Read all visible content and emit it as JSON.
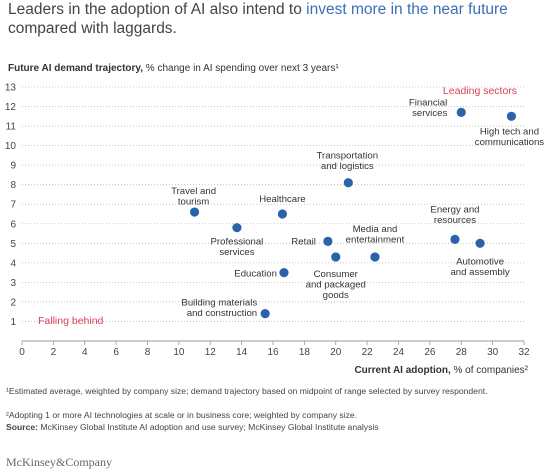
{
  "headline": {
    "part1": "Leaders in the adoption of AI also intend to ",
    "highlight": "invest more in the near future",
    "part2": " compared with laggards."
  },
  "colors": {
    "point": "#2b63a8",
    "accent_red": "#d9425a",
    "highlight_blue": "#3a6fb7",
    "grid": "#bbbbbb"
  },
  "chart_data": {
    "type": "scatter",
    "ylabel_bold": "Future AI demand trajectory,",
    "ylabel_rest": " % change in AI spending over next 3 years¹",
    "xlabel_bold": "Current AI adoption,",
    "xlabel_rest": " % of companies²",
    "xlim": [
      0,
      32
    ],
    "ylim": [
      0,
      13
    ],
    "xticks": [
      0,
      2,
      4,
      6,
      8,
      10,
      12,
      14,
      16,
      18,
      20,
      22,
      24,
      26,
      28,
      30,
      32
    ],
    "yticks": [
      1,
      2,
      3,
      4,
      5,
      6,
      7,
      8,
      9,
      10,
      11,
      12,
      13
    ],
    "grid": "horizontal dotted",
    "annotations": [
      {
        "text": "Leading sectors",
        "position": "top-right",
        "color": "#d9425a"
      },
      {
        "text": "Falling behind",
        "position": "bottom-left",
        "color": "#d9425a"
      }
    ],
    "points": [
      {
        "label": "Financial\nservices",
        "x": 28.0,
        "y": 11.7
      },
      {
        "label": "High tech and\ncommunications",
        "x": 31.2,
        "y": 11.5
      },
      {
        "label": "Transportation\nand logistics",
        "x": 20.8,
        "y": 8.1
      },
      {
        "label": "Travel and\ntourism",
        "x": 11.0,
        "y": 6.6
      },
      {
        "label": "Healthcare",
        "x": 16.6,
        "y": 6.5
      },
      {
        "label": "Professional\nservices",
        "x": 13.7,
        "y": 5.8
      },
      {
        "label": "Retail",
        "x": 19.5,
        "y": 5.1
      },
      {
        "label": "Media and\nentertainment",
        "x": 22.5,
        "y": 4.3
      },
      {
        "label": "Consumer\nand packaged\ngoods",
        "x": 20.0,
        "y": 4.3
      },
      {
        "label": "Energy and\nresources",
        "x": 27.6,
        "y": 5.2
      },
      {
        "label": "Automotive\nand assembly",
        "x": 29.2,
        "y": 5.0
      },
      {
        "label": "Education",
        "x": 16.7,
        "y": 3.5
      },
      {
        "label": "Building materials\nand construction",
        "x": 15.5,
        "y": 1.4
      }
    ]
  },
  "footnotes": {
    "note1": "¹Estimated average, weighted by company size; demand trajectory based on midpoint of range selected by survey respondent.",
    "note2": "²Adopting 1 or more AI technologies at scale or in business core; weighted by company size.",
    "source_label": "Source:",
    "source_text": " McKinsey Global Institute AI adoption and use survey; McKinsey Global Institute analysis"
  },
  "logo": "McKinsey&Company"
}
